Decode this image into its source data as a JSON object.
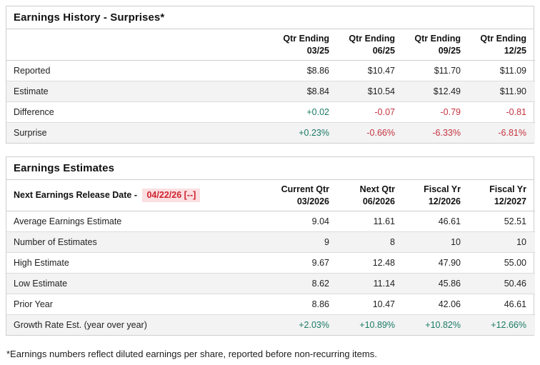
{
  "colors": {
    "positive": "#1a7a63",
    "negative": "#c43440",
    "date_red": "#d0222d",
    "date_bg": "#fbdfe1",
    "row_stripe": "#f3f3f3",
    "border": "#cfcfcf"
  },
  "earnings_history": {
    "title": "Earnings History - Surprises*",
    "columns": [
      {
        "line1": "Qtr Ending",
        "line2": "03/25"
      },
      {
        "line1": "Qtr Ending",
        "line2": "06/25"
      },
      {
        "line1": "Qtr Ending",
        "line2": "09/25"
      },
      {
        "line1": "Qtr Ending",
        "line2": "12/25"
      }
    ],
    "rows": [
      {
        "label": "Reported",
        "values": [
          "$8.86",
          "$10.47",
          "$11.70",
          "$11.09"
        ],
        "styles": [
          "",
          "",
          "",
          ""
        ]
      },
      {
        "label": "Estimate",
        "values": [
          "$8.84",
          "$10.54",
          "$12.49",
          "$11.90"
        ],
        "styles": [
          "",
          "",
          "",
          ""
        ]
      },
      {
        "label": "Difference",
        "values": [
          "+0.02",
          "-0.07",
          "-0.79",
          "-0.81"
        ],
        "styles": [
          "pos",
          "neg",
          "neg",
          "neg"
        ]
      },
      {
        "label": "Surprise",
        "values": [
          "+0.23%",
          "-0.66%",
          "-6.33%",
          "-6.81%"
        ],
        "styles": [
          "pos",
          "neg",
          "neg",
          "neg"
        ]
      }
    ]
  },
  "earnings_estimates": {
    "title": "Earnings Estimates",
    "release_label": "Next Earnings Release Date -",
    "release_date": "04/22/26 [--]",
    "columns": [
      {
        "line1": "Current Qtr",
        "line2": "03/2026"
      },
      {
        "line1": "Next Qtr",
        "line2": "06/2026"
      },
      {
        "line1": "Fiscal Yr",
        "line2": "12/2026"
      },
      {
        "line1": "Fiscal Yr",
        "line2": "12/2027"
      }
    ],
    "rows": [
      {
        "label": "Average Earnings Estimate",
        "values": [
          "9.04",
          "11.61",
          "46.61",
          "52.51"
        ],
        "styles": [
          "",
          "",
          "",
          ""
        ]
      },
      {
        "label": "Number of Estimates",
        "values": [
          "9",
          "8",
          "10",
          "10"
        ],
        "styles": [
          "",
          "",
          "",
          ""
        ]
      },
      {
        "label": "High Estimate",
        "values": [
          "9.67",
          "12.48",
          "47.90",
          "55.00"
        ],
        "styles": [
          "",
          "",
          "",
          ""
        ]
      },
      {
        "label": "Low Estimate",
        "values": [
          "8.62",
          "11.14",
          "45.86",
          "50.46"
        ],
        "styles": [
          "",
          "",
          "",
          ""
        ]
      },
      {
        "label": "Prior Year",
        "values": [
          "8.86",
          "10.47",
          "42.06",
          "46.61"
        ],
        "styles": [
          "",
          "",
          "",
          ""
        ]
      },
      {
        "label": "Growth Rate Est. (year over year)",
        "values": [
          "+2.03%",
          "+10.89%",
          "+10.82%",
          "+12.66%"
        ],
        "styles": [
          "pos",
          "pos",
          "pos",
          "pos"
        ]
      }
    ]
  },
  "footnote": "*Earnings numbers reflect diluted earnings per share, reported before non-recurring items."
}
